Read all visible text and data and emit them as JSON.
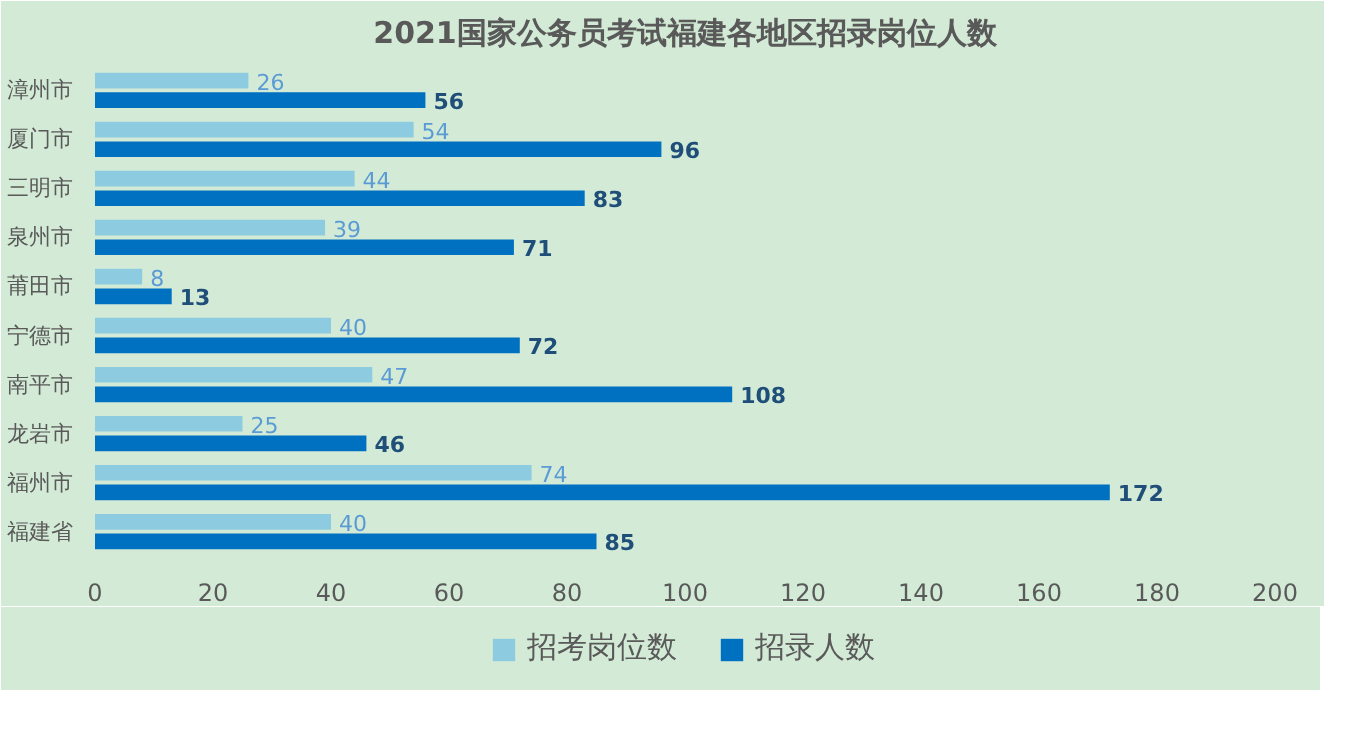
{
  "chart_data": {
    "type": "bar",
    "orientation": "horizontal",
    "title": "2021国家公务员考试福建各地区招录岗位人数",
    "categories": [
      "漳州市",
      "厦门市",
      "三明市",
      "泉州市",
      "莆田市",
      "宁德市",
      "南平市",
      "龙岩市",
      "福州市",
      "福建省"
    ],
    "series": [
      {
        "name": "招考岗位数",
        "color": "#8ccbe0",
        "values": [
          26,
          54,
          44,
          39,
          8,
          40,
          47,
          25,
          74,
          40
        ]
      },
      {
        "name": "招录人数",
        "color": "#0070c0",
        "values": [
          56,
          96,
          83,
          71,
          13,
          72,
          108,
          46,
          172,
          85
        ]
      }
    ],
    "xlim": [
      0,
      200
    ],
    "xticks": [
      0,
      20,
      40,
      60,
      80,
      100,
      120,
      140,
      160,
      180,
      200
    ],
    "data_labels": true,
    "grid": false,
    "legend": "bottom"
  }
}
